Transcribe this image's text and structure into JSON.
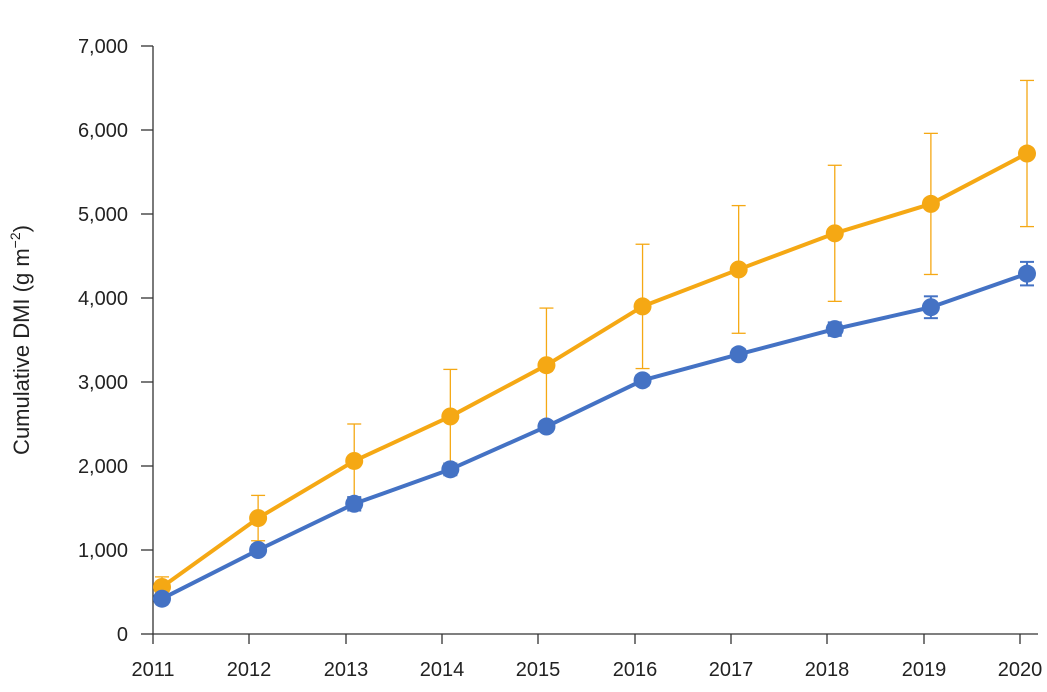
{
  "chart_data": {
    "type": "line",
    "title": "",
    "xlabel": "",
    "ylabel": {
      "main": "Cumulative DMI (g m",
      "superscript": "−2",
      "close": ")"
    },
    "x": [
      "2011",
      "2012",
      "2013",
      "2014",
      "2015",
      "2016",
      "2017",
      "2018",
      "2019",
      "2020"
    ],
    "xlim": [
      2011,
      2020
    ],
    "ylim": [
      0,
      7000
    ],
    "y_ticks": [
      0,
      1000,
      2000,
      3000,
      4000,
      5000,
      6000,
      7000
    ],
    "y_tick_labels": [
      "0",
      "1,000",
      "2,000",
      "3,000",
      "4,000",
      "5,000",
      "6,000",
      "7,000"
    ],
    "grid": false,
    "legend": "none",
    "series": [
      {
        "color": "#F5A814",
        "values": [
          560,
          1380,
          2060,
          2590,
          3200,
          3900,
          4340,
          4770,
          5120,
          5720
        ],
        "error": [
          120,
          270,
          440,
          560,
          680,
          740,
          760,
          810,
          840,
          870
        ]
      },
      {
        "color": "#4472C4",
        "values": [
          420,
          1000,
          1550,
          1960,
          2470,
          3020,
          3330,
          3630,
          3890,
          4290
        ],
        "error": [
          40,
          60,
          80,
          70,
          60,
          60,
          60,
          80,
          130,
          140
        ]
      }
    ]
  }
}
